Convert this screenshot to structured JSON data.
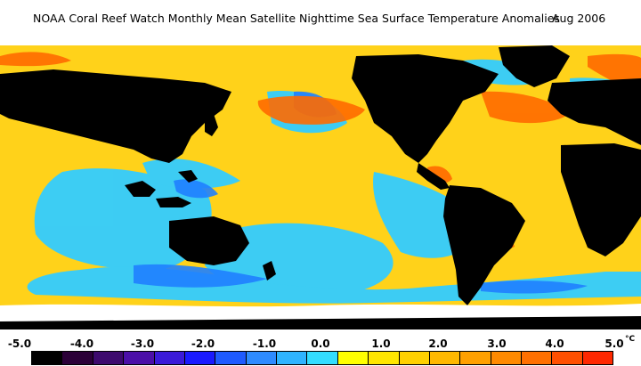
{
  "title": {
    "main": "NOAA Coral Reef Watch Monthly Mean Satellite Nighttime Sea Surface Temperature Anomalies",
    "date": "Aug 2006"
  },
  "scale": {
    "labels": [
      "-5.0",
      "-4.0",
      "-3.0",
      "-2.0",
      "-1.0",
      "0.0",
      "1.0",
      "2.0",
      "3.0",
      "4.0",
      "5.0"
    ],
    "unit": "°C",
    "colors": [
      "#000000",
      "#2b0038",
      "#3d0a6e",
      "#4b0fa8",
      "#3a1ad8",
      "#1a1aff",
      "#1f5bff",
      "#2e8bff",
      "#2fb4ff",
      "#33ddff",
      "#ffff00",
      "#ffe600",
      "#ffd000",
      "#ffb800",
      "#ffa000",
      "#ff8a00",
      "#ff7000",
      "#ff5000",
      "#ff2800"
    ]
  },
  "colors": {
    "land": "#000000",
    "ice": "#ffffff",
    "warm": "#ffd000",
    "hot": "#ff6a00",
    "cool": "#33ccff",
    "cold": "#1f7fff"
  }
}
